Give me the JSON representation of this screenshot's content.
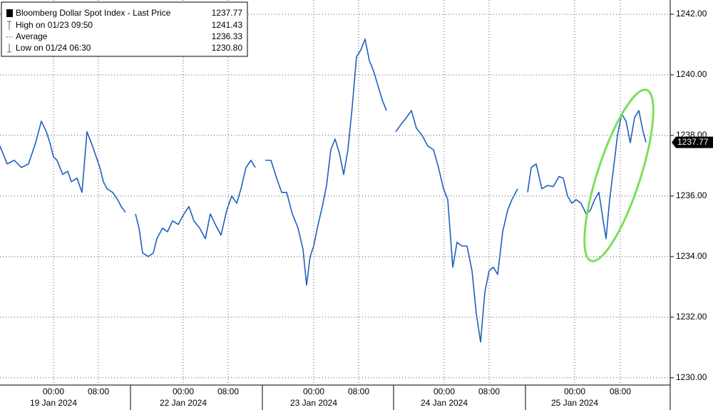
{
  "chart_data": {
    "type": "line",
    "series": [
      {
        "name": "Bloomberg Dollar Spot Index - Last Price",
        "color": "#1f5fbf",
        "x": [
          0,
          1.25,
          2.5,
          3.75,
          5,
          6.25,
          7.25,
          8.125,
          8.75,
          9.375,
          10,
          11,
          11.875,
          12.5,
          13.5,
          14.375,
          15.25,
          16,
          16.875,
          17.5,
          18.125,
          18.75,
          19.75,
          20.625,
          21.25,
          22,
          23,
          23.75,
          24.375,
          25,
          26,
          26.875,
          27.5,
          28.5,
          29.375,
          30.25,
          31.25,
          32.25,
          33.125,
          34,
          35,
          36,
          36.875,
          37.75,
          38.75,
          39.75,
          40.625,
          41.5,
          42.25,
          43.125,
          44,
          44.75,
          45.5,
          46.5,
          47.5,
          48.5,
          49.375,
          50.25,
          51.25,
          52.25,
          53.125,
          53.75,
          54.375,
          55,
          55.625,
          56.5,
          57.25,
          58,
          58.75,
          59.5,
          60.25,
          61,
          61.75,
          62.5,
          63.25,
          64,
          64.75,
          65.5,
          66.25,
          67,
          67.75,
          68.5,
          69.375,
          70.25,
          71.25,
          72.125,
          73,
          74,
          75,
          76,
          76.875,
          77.75,
          78.5,
          79.375,
          80.125,
          81,
          81.875,
          82.75,
          83.5,
          84.25,
          85,
          85.75,
          86.5,
          87.25,
          88.125,
          89,
          89.75,
          90.75,
          91.75,
          92.5,
          93.125,
          94,
          95,
          96,
          97,
          98,
          98.75,
          99.5,
          100.25,
          101,
          101.875,
          102.75,
          103.5,
          104.25,
          105,
          105.75,
          106.25,
          106.875,
          107.5,
          108.25,
          109,
          109.75,
          110.5,
          111.25,
          112,
          112.75,
          113.25
        ],
        "values": [
          1237.65,
          1237.06,
          1237.18,
          1236.94,
          1237.06,
          1237.76,
          1238.47,
          1238.12,
          1237.76,
          1237.29,
          1237.18,
          1236.71,
          1236.82,
          1236.47,
          1236.59,
          1236.12,
          1238.12,
          1237.76,
          1237.29,
          1236.94,
          1236.47,
          1236.24,
          1236.12,
          1235.88,
          1235.65,
          1235.46,
          null,
          1235.41,
          1234.94,
          1234.12,
          1234.0,
          1234.12,
          1234.59,
          1234.94,
          1234.82,
          1235.18,
          1235.06,
          1235.41,
          1235.65,
          1235.18,
          1234.94,
          1234.59,
          1235.41,
          1235.06,
          1234.71,
          1235.53,
          1236.0,
          1235.76,
          1236.24,
          1236.94,
          1237.18,
          1236.94,
          null,
          1237.18,
          1237.18,
          1236.59,
          1236.12,
          1236.12,
          1235.41,
          1234.94,
          1234.24,
          1233.06,
          1234.0,
          1234.35,
          1234.94,
          1235.65,
          1236.35,
          1237.53,
          1237.88,
          1237.41,
          1236.71,
          1237.53,
          1238.94,
          1240.59,
          1240.82,
          1241.18,
          1240.47,
          1240.12,
          1239.65,
          1239.18,
          1238.82,
          null,
          1238.12,
          1238.35,
          1238.59,
          1238.82,
          1238.24,
          1238.0,
          1237.65,
          1237.53,
          1236.94,
          1236.24,
          1235.88,
          1233.65,
          1234.47,
          1234.35,
          1234.35,
          1233.53,
          1232.12,
          1231.18,
          1232.82,
          1233.53,
          1233.65,
          1233.41,
          1234.82,
          1235.53,
          1235.88,
          1236.24,
          null,
          1236.12,
          1236.94,
          1237.06,
          1236.24,
          1236.35,
          1236.31,
          1236.64,
          1236.59,
          1236.0,
          1235.76,
          1235.88,
          1235.76,
          1235.41,
          1235.53,
          1235.88,
          1236.12,
          1235.18,
          1234.59,
          1235.88,
          1236.82,
          1238.0,
          1238.71,
          1238.47,
          1237.76,
          1238.59,
          1238.82,
          1238.12,
          1237.77
        ],
        "last": 1237.77
      }
    ],
    "stats": [
      {
        "name": "High on 01/23 09:50",
        "value": 1241.43
      },
      {
        "name": "Average",
        "value": 1236.33
      },
      {
        "name": "Low on 01/24 06:30",
        "value": 1230.8,
        "value_label": "1230.80"
      }
    ],
    "xlim": [
      0,
      117.5
    ],
    "ylim": [
      1229.76,
      1242.47
    ],
    "yticks": [
      {
        "value": 1230,
        "label": "1230.00"
      },
      {
        "value": 1232,
        "label": "1232.00"
      },
      {
        "value": 1234,
        "label": "1234.00"
      },
      {
        "value": 1236,
        "label": "1236.00"
      },
      {
        "value": 1238,
        "label": "1238.00"
      },
      {
        "value": 1240,
        "label": "1240.00"
      },
      {
        "value": 1242,
        "label": "1242.00"
      }
    ],
    "xticks": [
      {
        "value": 9.375,
        "label": "00:00"
      },
      {
        "value": 17.25,
        "label": "08:00"
      },
      {
        "value": 32.125,
        "label": "00:00"
      },
      {
        "value": 40,
        "label": "08:00"
      },
      {
        "value": 55,
        "label": "00:00"
      },
      {
        "value": 62.875,
        "label": "08:00"
      },
      {
        "value": 77.875,
        "label": "00:00"
      },
      {
        "value": 85.75,
        "label": "08:00"
      },
      {
        "value": 100.75,
        "label": "00:00"
      },
      {
        "value": 108.75,
        "label": "08:00"
      }
    ],
    "xdates": [
      {
        "value": 9.375,
        "label": "19 Jan 2024"
      },
      {
        "value": 32.125,
        "label": "22 Jan 2024"
      },
      {
        "value": 55,
        "label": "23 Jan 2024"
      },
      {
        "value": 77.875,
        "label": "24 Jan 2024"
      },
      {
        "value": 100.75,
        "label": "25 Jan 2024"
      }
    ],
    "grid": true
  }
}
